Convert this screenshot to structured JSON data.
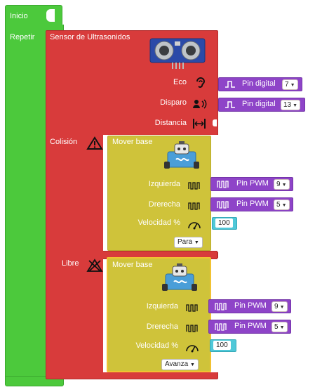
{
  "inicio_label": "Inicio",
  "repetir_label": "Repetir",
  "sensor": {
    "title": "Sensor de Ultrasonidos",
    "eco_label": "Eco",
    "disparo_label": "Disparo",
    "distancia_label": "Distancia",
    "eco_pin": {
      "label": "Pin digital",
      "value": "7"
    },
    "disparo_pin": {
      "label": "Pin digital",
      "value": "13"
    },
    "colision_label": "Colisión",
    "libre_label": "Libre"
  },
  "mover1": {
    "title": "Mover base",
    "izquierda_label": "Izquierda",
    "derecha_label": "Drerecha",
    "velocidad_label": "Velocidad %",
    "izq_pin": {
      "label": "Pin PWM",
      "value": "9"
    },
    "der_pin": {
      "label": "Pin PWM",
      "value": "5"
    },
    "speed": "100",
    "action": "Para"
  },
  "mover2": {
    "title": "Mover base",
    "izquierda_label": "Izquierda",
    "derecha_label": "Drerecha",
    "velocidad_label": "Velocidad %",
    "izq_pin": {
      "label": "Pin PWM",
      "value": "9"
    },
    "der_pin": {
      "label": "Pin PWM",
      "value": "5"
    },
    "speed": "100",
    "action": "Avanza"
  },
  "colors": {
    "green": "#4cc93c",
    "red": "#d83b3b",
    "yellow": "#cfc33a",
    "purple": "#8e44c8",
    "cyan": "#4fc8d8"
  }
}
